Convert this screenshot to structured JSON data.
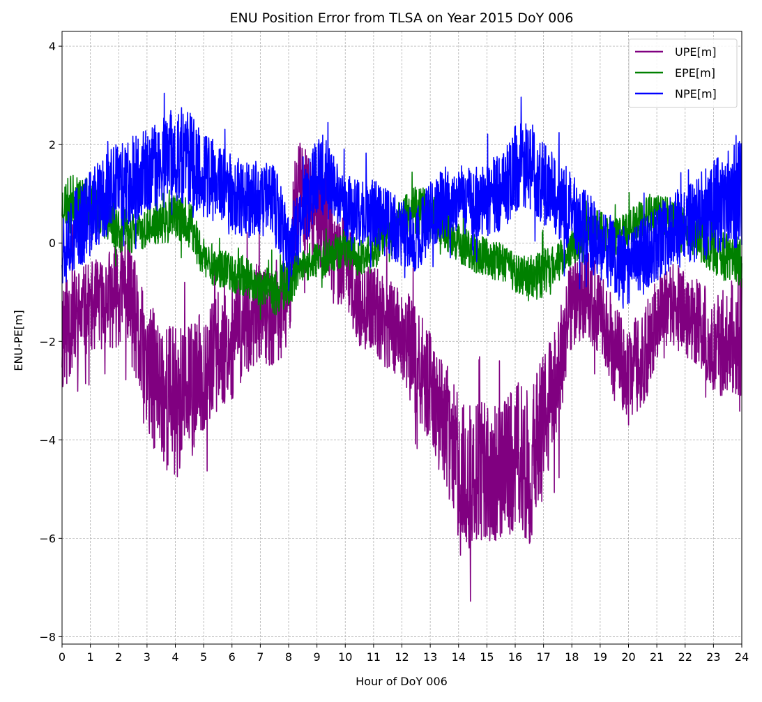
{
  "chart_data": {
    "type": "line",
    "title": "ENU Position Error from TLSA on Year 2015 DoY 006",
    "xlabel": "Hour of DoY 006",
    "ylabel": "ENU-PE[m]",
    "xlim": [
      0,
      24
    ],
    "ylim": [
      -8.15,
      4.3
    ],
    "xticks": [
      0,
      1,
      2,
      3,
      4,
      5,
      6,
      7,
      8,
      9,
      10,
      11,
      12,
      13,
      14,
      15,
      16,
      17,
      18,
      19,
      20,
      21,
      22,
      23,
      24
    ],
    "xtick_labels": [
      "0",
      "1",
      "2",
      "3",
      "4",
      "5",
      "6",
      "7",
      "8",
      "9",
      "10",
      "11",
      "12",
      "13",
      "14",
      "15",
      "16",
      "17",
      "18",
      "19",
      "20",
      "21",
      "22",
      "23",
      "24"
    ],
    "yticks": [
      4,
      2,
      0,
      -2,
      -4,
      -6,
      -8
    ],
    "ytick_labels": [
      "4",
      "2",
      "0",
      "−2",
      "−4",
      "−6",
      "−8"
    ],
    "grid": true,
    "legend_position": "top-right",
    "series": [
      {
        "name": "UPE[m]",
        "color": "#800080",
        "x": [
          0,
          0.25,
          0.5,
          1,
          1.5,
          2,
          2.3,
          2.7,
          3,
          3.5,
          4,
          4.5,
          5,
          5.5,
          6,
          6.5,
          7,
          7.5,
          8,
          8.2,
          8.4,
          8.6,
          9,
          9.3,
          9.7,
          10,
          10.3,
          10.5,
          11,
          11.5,
          12,
          12.5,
          13,
          13.5,
          14,
          14.5,
          15,
          15.5,
          16,
          16.5,
          17,
          17.5,
          18,
          18.5,
          19,
          19.5,
          20,
          20.5,
          21,
          21.5,
          22,
          22.5,
          23,
          23.5,
          24
        ],
        "center": [
          -1.8,
          -1.6,
          -1.5,
          -1.3,
          -1.2,
          -1.0,
          -0.8,
          -2.0,
          -2.6,
          -3.0,
          -3.2,
          -3.1,
          -2.6,
          -2.2,
          -2.0,
          -1.6,
          -1.4,
          -1.6,
          -1.2,
          0.5,
          1.5,
          0.8,
          0.6,
          0.4,
          -0.4,
          -0.2,
          -1.0,
          -1.2,
          -1.4,
          -1.6,
          -1.8,
          -2.4,
          -3.0,
          -3.6,
          -4.6,
          -4.8,
          -4.6,
          -4.8,
          -4.3,
          -4.6,
          -3.6,
          -2.8,
          -1.2,
          -1.0,
          -1.4,
          -2.2,
          -2.6,
          -2.4,
          -1.6,
          -1.3,
          -1.4,
          -1.6,
          -2.1,
          -2.0,
          -1.8
        ],
        "spread": [
          1.4,
          1.2,
          1.0,
          0.9,
          1.0,
          1.1,
          1.2,
          1.3,
          1.4,
          1.5,
          1.6,
          1.4,
          1.3,
          1.2,
          1.2,
          1.1,
          1.0,
          1.0,
          1.0,
          1.1,
          1.2,
          1.1,
          1.0,
          1.1,
          1.0,
          0.9,
          0.9,
          0.9,
          0.9,
          1.0,
          1.0,
          1.1,
          1.2,
          1.3,
          1.5,
          1.5,
          1.4,
          1.5,
          1.6,
          1.6,
          1.4,
          1.2,
          1.0,
          0.9,
          0.9,
          1.0,
          1.0,
          1.0,
          0.9,
          0.9,
          0.9,
          0.9,
          1.0,
          1.1,
          1.4
        ]
      },
      {
        "name": "EPE[m]",
        "color": "#008000",
        "x": [
          0,
          0.5,
          1,
          1.5,
          2,
          2.5,
          3,
          3.5,
          4,
          4.5,
          5,
          5.5,
          6,
          6.5,
          7,
          7.5,
          8,
          8.5,
          9,
          9.5,
          10,
          10.5,
          11,
          11.5,
          12,
          12.5,
          13,
          13.5,
          14,
          14.5,
          15,
          15.5,
          16,
          16.5,
          17,
          17.5,
          18,
          18.5,
          19,
          19.5,
          20,
          20.5,
          21,
          21.5,
          22,
          22.5,
          23,
          23.5,
          24
        ],
        "center": [
          0.8,
          0.9,
          0.8,
          0.6,
          0.3,
          0.2,
          0.3,
          0.4,
          0.5,
          0.4,
          -0.3,
          -0.5,
          -0.6,
          -0.7,
          -0.9,
          -1.0,
          -0.8,
          -0.5,
          -0.4,
          -0.2,
          -0.1,
          -0.3,
          -0.2,
          0.3,
          0.5,
          0.7,
          0.6,
          0.3,
          0.0,
          -0.2,
          -0.3,
          -0.4,
          -0.6,
          -0.7,
          -0.6,
          -0.4,
          -0.1,
          0.2,
          0.3,
          0.1,
          0.3,
          0.5,
          0.6,
          0.5,
          0.3,
          0.1,
          -0.2,
          -0.3,
          -0.4
        ],
        "spread": [
          0.5,
          0.5,
          0.5,
          0.5,
          0.5,
          0.4,
          0.4,
          0.4,
          0.5,
          0.5,
          0.5,
          0.4,
          0.4,
          0.4,
          0.4,
          0.5,
          0.5,
          0.4,
          0.4,
          0.4,
          0.4,
          0.4,
          0.4,
          0.4,
          0.4,
          0.5,
          0.5,
          0.4,
          0.4,
          0.4,
          0.4,
          0.4,
          0.4,
          0.5,
          0.5,
          0.4,
          0.4,
          0.4,
          0.4,
          0.4,
          0.4,
          0.4,
          0.4,
          0.4,
          0.4,
          0.5,
          0.5,
          0.5,
          0.5
        ]
      },
      {
        "name": "NPE[m]",
        "color": "#0000ff",
        "x": [
          0,
          0.5,
          1,
          1.5,
          2,
          2.5,
          3,
          3.5,
          4,
          4.5,
          5,
          5.5,
          6,
          6.5,
          7,
          7.5,
          8,
          8.5,
          9,
          9.5,
          10,
          10.5,
          11,
          11.5,
          12,
          12.5,
          13,
          13.5,
          14,
          14.5,
          15,
          15.5,
          16,
          16.5,
          17,
          17.5,
          18,
          18.5,
          19,
          19.5,
          20,
          20.5,
          21,
          21.5,
          22,
          22.5,
          23,
          23.5,
          24
        ],
        "center": [
          0.0,
          0.3,
          0.6,
          0.9,
          1.2,
          1.3,
          1.4,
          1.6,
          1.8,
          1.7,
          1.4,
          1.2,
          1.0,
          0.9,
          0.9,
          0.8,
          -0.2,
          0.6,
          1.5,
          1.2,
          0.7,
          0.6,
          0.6,
          0.4,
          0.2,
          0.0,
          0.6,
          0.8,
          0.9,
          0.8,
          0.9,
          1.0,
          1.5,
          1.6,
          1.2,
          0.9,
          0.6,
          0.3,
          0.0,
          -0.3,
          -0.5,
          -0.3,
          0.0,
          0.2,
          0.4,
          0.5,
          0.7,
          0.9,
          1.0
        ],
        "spread": [
          0.9,
          0.9,
          0.9,
          0.9,
          0.9,
          0.9,
          0.9,
          0.9,
          1.0,
          1.0,
          0.9,
          0.8,
          0.8,
          0.8,
          0.8,
          0.8,
          0.8,
          0.8,
          0.9,
          0.8,
          0.7,
          0.7,
          0.7,
          0.7,
          0.7,
          0.7,
          0.7,
          0.7,
          0.7,
          0.7,
          0.8,
          0.8,
          0.9,
          0.9,
          0.9,
          0.8,
          0.8,
          0.8,
          0.8,
          0.8,
          0.8,
          0.8,
          0.8,
          0.8,
          0.8,
          0.9,
          1.0,
          1.0,
          1.1
        ]
      }
    ]
  }
}
